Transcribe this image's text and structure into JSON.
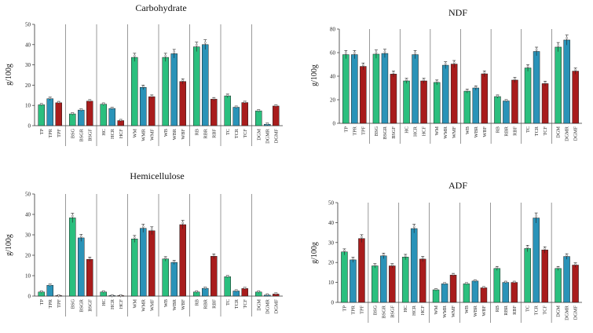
{
  "colors": {
    "green": "#2bbf7e",
    "blue": "#2a93b8",
    "red": "#a81c1c"
  },
  "chart_data": [
    {
      "type": "bar",
      "title": "Carbohydrate",
      "ylabel": "g/100g",
      "ylim": [
        0,
        50
      ],
      "yticks": [
        0,
        10,
        20,
        30,
        40,
        50
      ],
      "groups": [
        {
          "labels": [
            "TP",
            "TPR",
            "TPF"
          ],
          "values": [
            10.3,
            13.3,
            11.3
          ]
        },
        {
          "labels": [
            "BSG",
            "BSGR",
            "BSGF"
          ],
          "values": [
            5.8,
            7.7,
            12.1
          ]
        },
        {
          "labels": [
            "HC",
            "HCR",
            "HCF"
          ],
          "values": [
            10.6,
            8.5,
            2.5
          ]
        },
        {
          "labels": [
            "WM",
            "WMR",
            "WMF"
          ],
          "values": [
            33.7,
            18.9,
            14.3
          ]
        },
        {
          "labels": [
            "WB",
            "WBR",
            "WBF"
          ],
          "values": [
            33.7,
            35.5,
            21.8
          ]
        },
        {
          "labels": [
            "RB",
            "RBR",
            "RBF"
          ],
          "values": [
            38.9,
            40.0,
            13.1
          ]
        },
        {
          "labels": [
            "TC",
            "TCR",
            "TCF"
          ],
          "values": [
            14.7,
            9.1,
            11.4
          ]
        },
        {
          "labels": [
            "DGM",
            "DGMR",
            "DGMF"
          ],
          "values": [
            7.3,
            0.7,
            9.7
          ]
        }
      ]
    },
    {
      "type": "bar",
      "title": "NDF",
      "ylabel": "g/100g",
      "ylim": [
        0,
        80
      ],
      "yticks": [
        0,
        20,
        40,
        60,
        80
      ],
      "groups": [
        {
          "labels": [
            "TP",
            "TPR",
            "TPF"
          ],
          "values": [
            58.3,
            58.3,
            48.3
          ]
        },
        {
          "labels": [
            "BSG",
            "BSGR",
            "BSGF"
          ],
          "values": [
            58.7,
            59.3,
            41.8
          ]
        },
        {
          "labels": [
            "HC",
            "HCR",
            "HCF"
          ],
          "values": [
            36.0,
            58.3,
            36.0
          ]
        },
        {
          "labels": [
            "WM",
            "WMR",
            "WMF"
          ],
          "values": [
            34.7,
            49.3,
            50.3
          ]
        },
        {
          "labels": [
            "WB",
            "WBR",
            "WBF"
          ],
          "values": [
            27.3,
            30.0,
            42.0
          ]
        },
        {
          "labels": [
            "RB",
            "RBR",
            "RBF"
          ],
          "values": [
            22.7,
            19.0,
            36.7
          ]
        },
        {
          "labels": [
            "TC",
            "TCR",
            "TCF"
          ],
          "values": [
            47.0,
            61.0,
            33.7
          ]
        },
        {
          "labels": [
            "DGM",
            "DGMR",
            "DGMF"
          ],
          "values": [
            64.7,
            70.7,
            44.3
          ]
        }
      ]
    },
    {
      "type": "bar",
      "title": "Hemicellulose",
      "ylabel": "g/100g",
      "ylim": [
        0,
        50
      ],
      "yticks": [
        0,
        10,
        20,
        30,
        40,
        50
      ],
      "groups": [
        {
          "labels": [
            "TP",
            "TPR",
            "TPF"
          ],
          "values": [
            2.0,
            5.3,
            0.0
          ]
        },
        {
          "labels": [
            "BSG",
            "BSGR",
            "BSGF"
          ],
          "values": [
            38.3,
            28.5,
            18.0
          ]
        },
        {
          "labels": [
            "HC",
            "HCR",
            "HCF"
          ],
          "values": [
            2.0,
            0.0,
            0.0
          ]
        },
        {
          "labels": [
            "WM",
            "WMR",
            "WMF"
          ],
          "values": [
            28.0,
            33.2,
            32.0
          ]
        },
        {
          "labels": [
            "WB",
            "WBR",
            "WBF"
          ],
          "values": [
            18.2,
            16.5,
            35.0
          ]
        },
        {
          "labels": [
            "RB",
            "RBR",
            "RBF"
          ],
          "values": [
            2.0,
            3.8,
            19.5
          ]
        },
        {
          "labels": [
            "TC",
            "TCR",
            "TCF"
          ],
          "values": [
            9.5,
            2.5,
            3.7
          ]
        },
        {
          "labels": [
            "DGM",
            "DGMR",
            "DGMF"
          ],
          "values": [
            2.0,
            0.5,
            1.0
          ]
        }
      ]
    },
    {
      "type": "bar",
      "title": "ADF",
      "ylabel": "g/100g",
      "ylim": [
        0,
        50
      ],
      "yticks": [
        0,
        10,
        20,
        30,
        40,
        50
      ],
      "groups": [
        {
          "labels": [
            "TP",
            "TPR",
            "TPF"
          ],
          "values": [
            25.3,
            21.3,
            32.0
          ]
        },
        {
          "labels": [
            "BSG",
            "BSGR",
            "BSGF"
          ],
          "values": [
            18.3,
            23.3,
            18.3
          ]
        },
        {
          "labels": [
            "HC",
            "HCR",
            "HCF"
          ],
          "values": [
            22.7,
            37.0,
            21.7
          ]
        },
        {
          "labels": [
            "WM",
            "WMR",
            "WMF"
          ],
          "values": [
            6.3,
            9.3,
            13.7
          ]
        },
        {
          "labels": [
            "WB",
            "WBR",
            "WBF"
          ],
          "values": [
            9.3,
            10.7,
            7.3
          ]
        },
        {
          "labels": [
            "RB",
            "RBR",
            "RBF"
          ],
          "values": [
            17.0,
            10.0,
            10.0
          ]
        },
        {
          "labels": [
            "TC",
            "TCR",
            "TCF"
          ],
          "values": [
            27.0,
            42.3,
            26.3
          ]
        },
        {
          "labels": [
            "DGM",
            "DGMR",
            "DGMF"
          ],
          "values": [
            17.0,
            23.0,
            18.7
          ]
        }
      ]
    }
  ]
}
